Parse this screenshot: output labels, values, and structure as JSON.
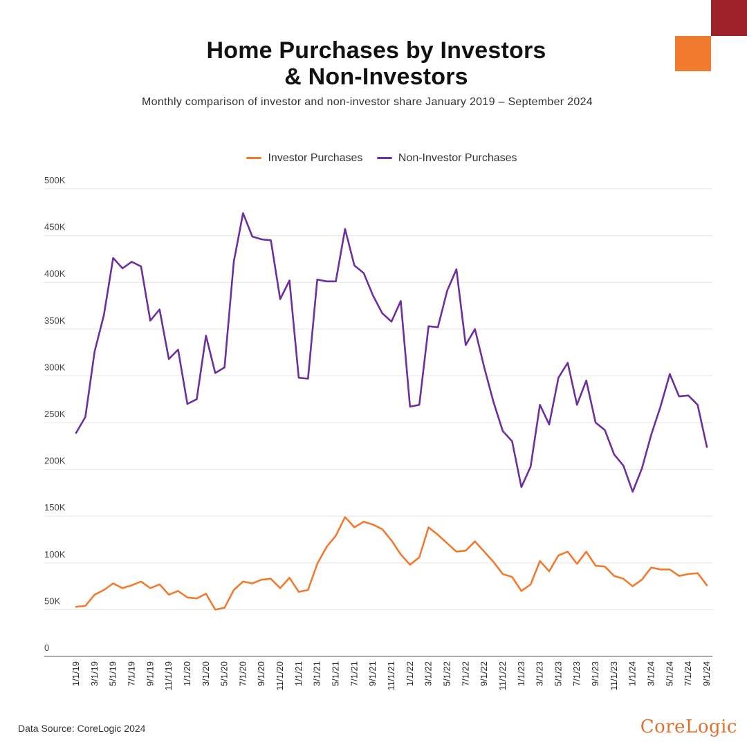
{
  "header": {
    "title_line1": "Home Purchases by Investors",
    "title_line2": "& Non-Investors",
    "subtitle": "Monthly comparison of investor and non-investor share January 2019 – September 2024"
  },
  "colors": {
    "investor": "#f07a2e",
    "non_investor": "#6b2fa0",
    "brand_dark": "#9e2229",
    "brand_orange": "#f07a2e"
  },
  "footer": {
    "source": "Data Source: CoreLogic 2024",
    "brand": "CoreLogic"
  },
  "chart_data": {
    "type": "line",
    "legend_position": "top-center",
    "grid": true,
    "ylim": [
      0,
      500000
    ],
    "y_ticks": [
      0,
      50000,
      100000,
      150000,
      200000,
      250000,
      300000,
      350000,
      400000,
      450000,
      500000
    ],
    "y_tick_labels": [
      "0",
      "50K",
      "100K",
      "150K",
      "200K",
      "250K",
      "300K",
      "350K",
      "400K",
      "450K",
      "500K"
    ],
    "x": [
      "1/1/19",
      "2/1/19",
      "3/1/19",
      "4/1/19",
      "5/1/19",
      "6/1/19",
      "7/1/19",
      "8/1/19",
      "9/1/19",
      "10/1/19",
      "11/1/19",
      "12/1/19",
      "1/1/20",
      "2/1/20",
      "3/1/20",
      "4/1/20",
      "5/1/20",
      "6/1/20",
      "7/1/20",
      "8/1/20",
      "9/1/20",
      "10/1/20",
      "11/1/20",
      "12/1/20",
      "1/1/21",
      "2/1/21",
      "3/1/21",
      "4/1/21",
      "5/1/21",
      "6/1/21",
      "7/1/21",
      "8/1/21",
      "9/1/21",
      "10/1/21",
      "11/1/21",
      "12/1/21",
      "1/1/22",
      "2/1/22",
      "3/1/22",
      "4/1/22",
      "5/1/22",
      "6/1/22",
      "7/1/22",
      "8/1/22",
      "9/1/22",
      "10/1/22",
      "11/1/22",
      "12/1/22",
      "1/1/23",
      "2/1/23",
      "3/1/23",
      "4/1/23",
      "5/1/23",
      "6/1/23",
      "7/1/23",
      "8/1/23",
      "9/1/23",
      "10/1/23",
      "11/1/23",
      "12/1/23",
      "1/1/24",
      "2/1/24",
      "3/1/24",
      "4/1/24",
      "5/1/24",
      "6/1/24",
      "7/1/24",
      "8/1/24",
      "9/1/24"
    ],
    "x_tick_labels": [
      "1/1/19",
      "3/1/19",
      "5/1/19",
      "7/1/19",
      "9/1/19",
      "11/1/19",
      "1/1/20",
      "3/1/20",
      "5/1/20",
      "7/1/20",
      "9/1/20",
      "11/1/20",
      "1/1/21",
      "3/1/21",
      "5/1/21",
      "7/1/21",
      "9/1/21",
      "11/1/21",
      "1/1/22",
      "3/1/22",
      "5/1/22",
      "7/1/22",
      "9/1/22",
      "11/1/22",
      "1/1/23",
      "3/1/23",
      "5/1/23",
      "7/1/23",
      "9/1/23",
      "11/1/23",
      "1/1/24",
      "3/1/24",
      "5/1/24",
      "7/1/24",
      "9/1/24"
    ],
    "series": [
      {
        "name": "Investor Purchases",
        "color": "#f07a2e",
        "values": [
          53000,
          54000,
          66000,
          71000,
          78000,
          73000,
          76000,
          80000,
          73000,
          77000,
          66000,
          70000,
          63000,
          62000,
          67000,
          50000,
          52000,
          71000,
          80000,
          78000,
          82000,
          83000,
          73000,
          84000,
          69000,
          71000,
          99000,
          117000,
          129000,
          149000,
          138000,
          144000,
          141000,
          136000,
          124000,
          109000,
          98000,
          106000,
          138000,
          130000,
          121000,
          112000,
          113000,
          123000,
          112000,
          101000,
          88000,
          85000,
          70000,
          77000,
          102000,
          91000,
          108000,
          112000,
          99000,
          112000,
          97000,
          96000,
          86000,
          83000,
          75000,
          82000,
          95000,
          93000,
          93000,
          86000,
          88000,
          89000,
          76000
        ]
      },
      {
        "name": "Non-Investor Purchases",
        "color": "#6b2fa0",
        "values": [
          239000,
          256000,
          326000,
          365000,
          426000,
          415000,
          422000,
          417000,
          359000,
          371000,
          318000,
          328000,
          270000,
          275000,
          343000,
          303000,
          309000,
          422000,
          474000,
          449000,
          446000,
          445000,
          382000,
          402000,
          298000,
          297000,
          403000,
          401000,
          401000,
          457000,
          418000,
          410000,
          386000,
          367000,
          358000,
          380000,
          267000,
          269000,
          353000,
          352000,
          391000,
          414000,
          333000,
          350000,
          309000,
          272000,
          241000,
          230000,
          181000,
          203000,
          269000,
          248000,
          298000,
          314000,
          269000,
          295000,
          250000,
          242000,
          216000,
          204000,
          176000,
          201000,
          237000,
          267000,
          302000,
          278000,
          279000,
          269000,
          224000
        ]
      }
    ]
  }
}
